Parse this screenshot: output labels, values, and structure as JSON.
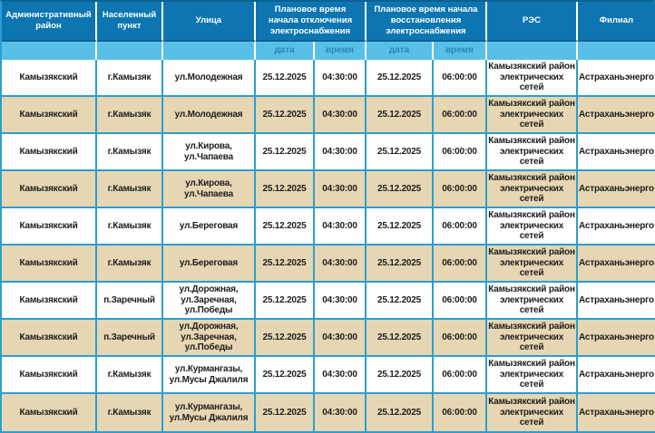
{
  "colors": {
    "header-bg": "#0d76b2",
    "header-text": "#ffffff",
    "header-divider": "#ffffff",
    "header-underline": "#0a6191",
    "subheader-bg": "#58bfe8",
    "subheader-text": "#2a86b8",
    "grid-border": "#2a9ed2",
    "row-bg": "#ffffff",
    "row-alt-bg": "#e7d6b3",
    "data-text": "#1d1d1b"
  },
  "table": {
    "columns": [
      {
        "label": "Административный район"
      },
      {
        "label": "Населенный пункт"
      },
      {
        "label": "Улица"
      },
      {
        "label": "Плановое время начала отключения электроснабжения",
        "sub": [
          "дата",
          "время"
        ]
      },
      {
        "label": "Плановое время начала восстановления электроснабжения",
        "sub": [
          "дата",
          "время"
        ]
      },
      {
        "label": "РЭС"
      },
      {
        "label": "Филиал"
      }
    ],
    "rows": [
      [
        "Камызякский",
        "г.Камызяк",
        "ул.Молодежная",
        "25.12.2025",
        "04:30:00",
        "25.12.2025",
        "06:00:00",
        "Камызякский район электрических сетей",
        "Астраханьэнерго"
      ],
      [
        "Камызякский",
        "г.Камызяк",
        "ул.Молодежная",
        "25.12.2025",
        "04:30:00",
        "25.12.2025",
        "06:00:00",
        "Камызякский район электрических сетей",
        "Астраханьэнерго"
      ],
      [
        "Камызякский",
        "г.Камызяк",
        "ул.Кирова, ул.Чапаева",
        "25.12.2025",
        "04:30:00",
        "25.12.2025",
        "06:00:00",
        "Камызякский район электрических сетей",
        "Астраханьэнерго"
      ],
      [
        "Камызякский",
        "г.Камызяк",
        "ул.Кирова, ул.Чапаева",
        "25.12.2025",
        "04:30:00",
        "25.12.2025",
        "06:00:00",
        "Камызякский район электрических сетей",
        "Астраханьэнерго"
      ],
      [
        "Камызякский",
        "г.Камызяк",
        "ул.Береговая",
        "25.12.2025",
        "04:30:00",
        "25.12.2025",
        "06:00:00",
        "Камызякский район электрических сетей",
        "Астраханьэнерго"
      ],
      [
        "Камызякский",
        "г.Камызяк",
        "ул.Береговая",
        "25.12.2025",
        "04:30:00",
        "25.12.2025",
        "06:00:00",
        "Камызякский район электрических сетей",
        "Астраханьэнерго"
      ],
      [
        "Камызякский",
        "п.Заречный",
        "ул.Дорожная, ул.Заречная, ул.Победы",
        "25.12.2025",
        "04:30:00",
        "25.12.2025",
        "06:00:00",
        "Камызякский район электрических сетей",
        "Астраханьэнерго"
      ],
      [
        "Камызякский",
        "п.Заречный",
        "ул.Дорожная, ул.Заречная, ул.Победы",
        "25.12.2025",
        "04:30:00",
        "25.12.2025",
        "06:00:00",
        "Камызякский район электрических сетей",
        "Астраханьэнерго"
      ],
      [
        "Камызякский",
        "г.Камызяк",
        "ул.Курмангазы, ул.Мусы Джалиля",
        "25.12.2025",
        "04:30:00",
        "25.12.2025",
        "06:00:00",
        "Камызякский район электрических сетей",
        "Астраханьэнерго"
      ],
      [
        "Камызякский",
        "г.Камызяк",
        "ул.Курмангазы, ул.Мусы Джалиля",
        "25.12.2025",
        "04:30:00",
        "25.12.2025",
        "06:00:00",
        "Камызякский район электрических сетей",
        "Астраханьэнерго"
      ]
    ]
  }
}
